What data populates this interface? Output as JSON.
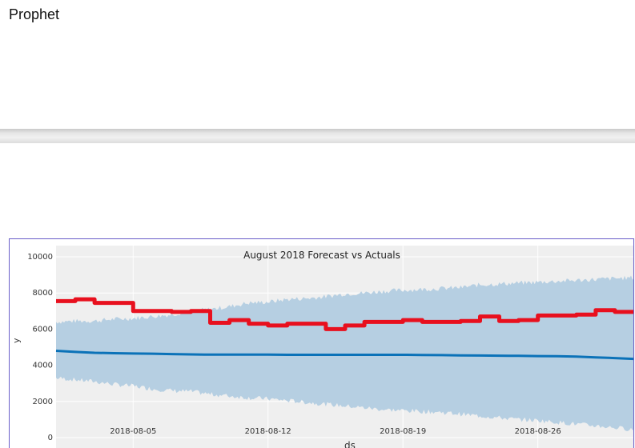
{
  "header": {
    "title": "Prophet"
  },
  "chart_data": {
    "type": "line",
    "title": "August 2018 Forecast vs Actuals",
    "xlabel": "ds",
    "ylabel": "y",
    "xlim": [
      "2018-08-01",
      "2018-08-31"
    ],
    "ylim": [
      0,
      10000
    ],
    "yticks": [
      0,
      2000,
      4000,
      6000,
      8000,
      10000
    ],
    "xticks": [
      "2018-08-05",
      "2018-08-12",
      "2018-08-19",
      "2018-08-26"
    ],
    "grid": true,
    "colors": {
      "actual": "#e8101e",
      "forecast": "#0b72b8",
      "interval": "#b6cfe2",
      "background": "#efefef",
      "grid": "#ffffff"
    },
    "x": [
      "2018-08-01",
      "2018-08-02",
      "2018-08-03",
      "2018-08-04",
      "2018-08-05",
      "2018-08-06",
      "2018-08-07",
      "2018-08-08",
      "2018-08-09",
      "2018-08-10",
      "2018-08-11",
      "2018-08-12",
      "2018-08-13",
      "2018-08-14",
      "2018-08-15",
      "2018-08-16",
      "2018-08-17",
      "2018-08-18",
      "2018-08-19",
      "2018-08-20",
      "2018-08-21",
      "2018-08-22",
      "2018-08-23",
      "2018-08-24",
      "2018-08-25",
      "2018-08-26",
      "2018-08-27",
      "2018-08-28",
      "2018-08-29",
      "2018-08-30",
      "2018-08-31"
    ],
    "series": [
      {
        "role": "actual",
        "values": [
          7550,
          7650,
          7450,
          7450,
          7000,
          7000,
          6950,
          7000,
          6350,
          6500,
          6300,
          6200,
          6300,
          6300,
          6000,
          6200,
          6400,
          6400,
          6500,
          6400,
          6400,
          6450,
          6700,
          6450,
          6500,
          6750,
          6750,
          6800,
          7050,
          6950,
          6950
        ]
      },
      {
        "role": "forecast",
        "values": [
          4800,
          4740,
          4690,
          4670,
          4650,
          4640,
          4620,
          4600,
          4590,
          4590,
          4590,
          4590,
          4580,
          4580,
          4580,
          4580,
          4580,
          4580,
          4580,
          4570,
          4560,
          4550,
          4540,
          4530,
          4520,
          4510,
          4500,
          4480,
          4440,
          4400,
          4350
        ]
      },
      {
        "role": "interval_upper",
        "values": [
          6400,
          6450,
          6450,
          6550,
          6600,
          6700,
          6800,
          7000,
          7100,
          7250,
          7450,
          7500,
          7650,
          7700,
          7800,
          7950,
          8000,
          8100,
          8150,
          8200,
          8250,
          8300,
          8450,
          8500,
          8550,
          8600,
          8650,
          8700,
          8750,
          8800,
          8850
        ]
      },
      {
        "role": "interval_lower",
        "values": [
          3300,
          3200,
          3100,
          2950,
          2850,
          2700,
          2600,
          2550,
          2400,
          2300,
          2200,
          2150,
          2050,
          1950,
          1850,
          1750,
          1650,
          1550,
          1500,
          1450,
          1400,
          1300,
          1200,
          1100,
          1000,
          950,
          850,
          750,
          650,
          550,
          450
        ]
      }
    ]
  }
}
